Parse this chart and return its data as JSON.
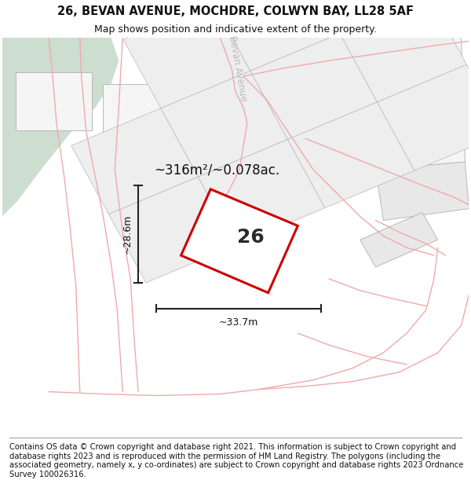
{
  "title_line1": "26, BEVAN AVENUE, MOCHDRE, COLWYN BAY, LL28 5AF",
  "title_line2": "Map shows position and indicative extent of the property.",
  "footer_text": "Contains OS data © Crown copyright and database right 2021. This information is subject to Crown copyright and database rights 2023 and is reproduced with the permission of HM Land Registry. The polygons (including the associated geometry, namely x, y co-ordinates) are subject to Crown copyright and database rights 2023 Ordnance Survey 100026316.",
  "area_label": "~316m²/~0.078ac.",
  "width_label": "~33.7m",
  "height_label": "~28.6m",
  "number_label": "26",
  "background_color": "#ffffff",
  "green_area_color": "#cdddd0",
  "highlight_color": "#cc0000",
  "light_red_color": "#f0aaaa",
  "street_label": "Bevan Avenue",
  "title_fontsize": 10.5,
  "subtitle_fontsize": 9,
  "footer_fontsize": 7.2,
  "map_facecolor": "#ffffff",
  "plot_fill": "#f0f0f0",
  "plot_edge": "#b8b8b8",
  "plot_lw": 0.7
}
